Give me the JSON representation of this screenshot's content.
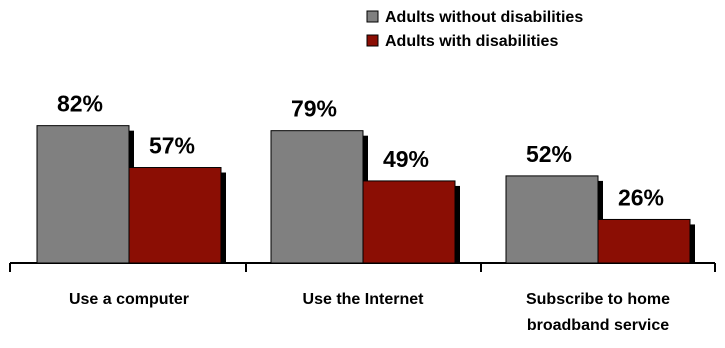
{
  "chart_data": {
    "type": "bar",
    "title": "",
    "xlabel": "",
    "ylabel": "",
    "ylim": [
      0,
      100
    ],
    "grid": false,
    "legend_position": "top-right",
    "categories": [
      [
        "Use a computer"
      ],
      [
        "Use the Internet"
      ],
      [
        "Subscribe to home",
        "broadband service"
      ]
    ],
    "series": [
      {
        "name": "Adults without disabilities",
        "color": "#808080",
        "values": [
          82,
          79,
          52
        ],
        "labels": [
          "82%",
          "79%",
          "52%"
        ]
      },
      {
        "name": "Adults with disabilities",
        "color": "#8b0e04",
        "values": [
          57,
          49,
          26
        ],
        "labels": [
          "57%",
          "49%",
          "26%"
        ]
      }
    ]
  }
}
